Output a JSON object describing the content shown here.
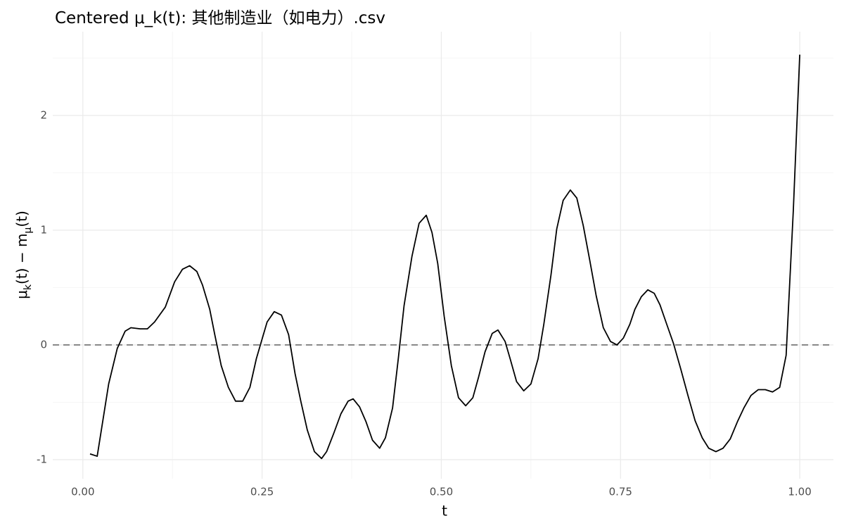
{
  "chart_data": {
    "type": "line",
    "title": "Centered μ_k(t): 其他制造业（如电力）.csv",
    "xlabel": "t",
    "ylabel": [
      "μ",
      "k",
      "(t) − m",
      "μ",
      "(t)"
    ],
    "x": [
      0.01,
      0.02,
      0.036,
      0.048,
      0.059,
      0.067,
      0.08,
      0.09,
      0.1,
      0.115,
      0.128,
      0.139,
      0.149,
      0.159,
      0.167,
      0.177,
      0.184,
      0.193,
      0.203,
      0.213,
      0.223,
      0.233,
      0.242,
      0.249,
      0.257,
      0.267,
      0.277,
      0.287,
      0.296,
      0.304,
      0.313,
      0.323,
      0.333,
      0.34,
      0.35,
      0.36,
      0.37,
      0.377,
      0.386,
      0.395,
      0.404,
      0.414,
      0.422,
      0.432,
      0.44,
      0.448,
      0.459,
      0.469,
      0.479,
      0.487,
      0.495,
      0.504,
      0.514,
      0.524,
      0.534,
      0.544,
      0.552,
      0.561,
      0.571,
      0.579,
      0.589,
      0.596,
      0.605,
      0.615,
      0.625,
      0.635,
      0.643,
      0.653,
      0.661,
      0.67,
      0.68,
      0.689,
      0.698,
      0.707,
      0.716,
      0.726,
      0.736,
      0.745,
      0.754,
      0.763,
      0.77,
      0.779,
      0.788,
      0.797,
      0.805,
      0.815,
      0.824,
      0.834,
      0.844,
      0.854,
      0.864,
      0.873,
      0.883,
      0.893,
      0.903,
      0.913,
      0.922,
      0.932,
      0.942,
      0.952,
      0.962,
      0.972,
      0.981,
      0.991,
      1.0
    ],
    "values": [
      -0.95,
      -0.97,
      -0.34,
      -0.03,
      0.12,
      0.15,
      0.14,
      0.14,
      0.2,
      0.33,
      0.55,
      0.66,
      0.69,
      0.64,
      0.52,
      0.31,
      0.09,
      -0.18,
      -0.37,
      -0.49,
      -0.49,
      -0.37,
      -0.12,
      0.03,
      0.2,
      0.29,
      0.26,
      0.09,
      -0.25,
      -0.49,
      -0.74,
      -0.93,
      -0.99,
      -0.93,
      -0.77,
      -0.6,
      -0.49,
      -0.47,
      -0.54,
      -0.67,
      -0.83,
      -0.9,
      -0.81,
      -0.55,
      -0.12,
      0.34,
      0.77,
      1.06,
      1.13,
      0.98,
      0.71,
      0.25,
      -0.18,
      -0.46,
      -0.53,
      -0.46,
      -0.28,
      -0.06,
      0.1,
      0.13,
      0.03,
      -0.12,
      -0.32,
      -0.4,
      -0.34,
      -0.12,
      0.18,
      0.61,
      1.01,
      1.26,
      1.35,
      1.28,
      1.04,
      0.74,
      0.43,
      0.15,
      0.03,
      0,
      0.06,
      0.18,
      0.31,
      0.42,
      0.48,
      0.45,
      0.35,
      0.17,
      0.01,
      -0.21,
      -0.44,
      -0.66,
      -0.81,
      -0.9,
      -0.93,
      -0.9,
      -0.82,
      -0.67,
      -0.55,
      -0.44,
      -0.39,
      -0.39,
      -0.41,
      -0.37,
      -0.09,
      1.17,
      2.53
    ],
    "color": "#000000",
    "xlim": [
      -0.042,
      1.047
    ],
    "ylim": [
      -1.166,
      2.73
    ],
    "xticks": [
      {
        "value": 0,
        "label": "0.00"
      },
      {
        "value": 0.25,
        "label": "0.25"
      },
      {
        "value": 0.5,
        "label": "0.50"
      },
      {
        "value": 0.75,
        "label": "0.75"
      },
      {
        "value": 1,
        "label": "1.00"
      }
    ],
    "yticks": [
      -1,
      0,
      1,
      2
    ],
    "x_minor": [
      0.125,
      0.375,
      0.625,
      0.875
    ],
    "y_minor": [
      -0.5,
      0.5,
      1.5,
      2.5
    ],
    "hline": 0,
    "grid": true
  }
}
